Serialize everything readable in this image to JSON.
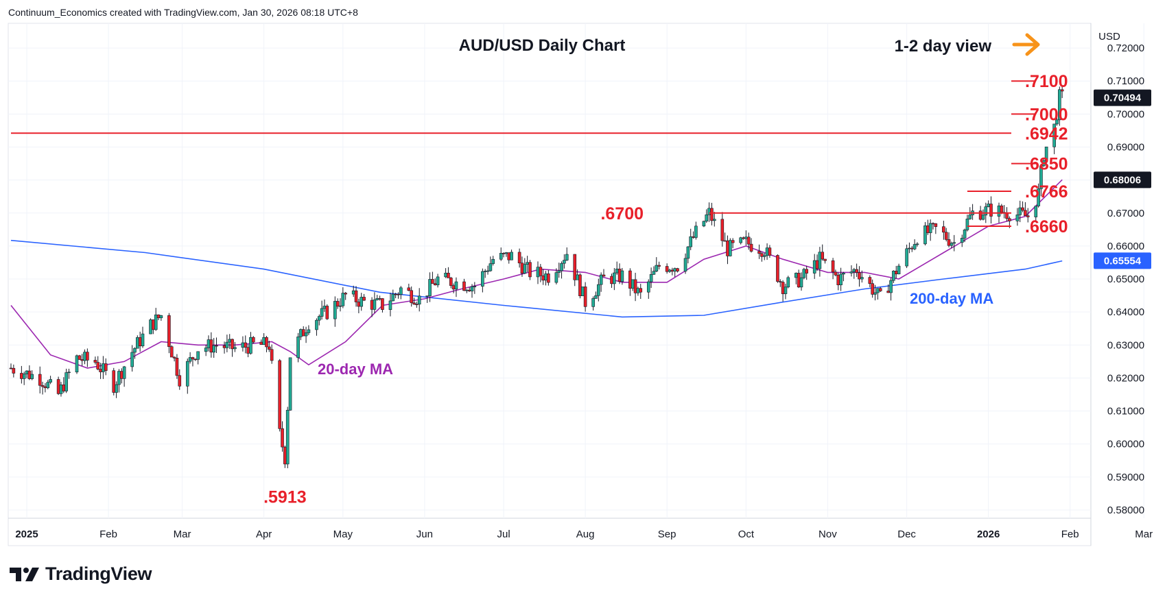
{
  "header": {
    "attribution": "Continuum_Economics created with TradingView.com, Jan 30, 2026 08:18 UTC+8"
  },
  "footer": {
    "logo_text": "TradingView"
  },
  "colors": {
    "up": "#22ab94",
    "down": "#e8202a",
    "ma20": "#9c27b0",
    "ma200": "#2962ff",
    "level": "#e8202a",
    "arrow": "#f7931a",
    "badge_neutral": "#131722",
    "badge_ma200": "#2962ff"
  },
  "chart_data": {
    "type": "candlestick",
    "title": "AUD/USD Daily Chart",
    "subtitle": "1-2 day view",
    "currency": "USD",
    "ylim": [
      0.5775,
      0.7275
    ],
    "y_ticks": [
      "0.72000",
      "0.71000",
      "0.70000",
      "0.69000",
      "0.68000",
      "0.67000",
      "0.66000",
      "0.65000",
      "0.64000",
      "0.63000",
      "0.62000",
      "0.61000",
      "0.60000",
      "0.59000",
      "0.58000"
    ],
    "x_ticks": [
      "2025",
      "Feb",
      "Mar",
      "Apr",
      "May",
      "Jun",
      "Jul",
      "Aug",
      "Sep",
      "Oct",
      "Nov",
      "Dec",
      "2026",
      "Feb",
      "Mar"
    ],
    "price_badges": [
      {
        "label": "0.70494",
        "value": 0.70494,
        "kind": "last"
      },
      {
        "label": "0.68006",
        "value": 0.68006,
        "kind": "ma20"
      },
      {
        "label": "0.65554",
        "value": 0.65554,
        "kind": "ma200"
      }
    ],
    "levels": [
      {
        "label": ".7100",
        "value": 0.71,
        "start": "2026-01-19"
      },
      {
        "label": ".7000",
        "value": 0.7,
        "start": "2026-01-19"
      },
      {
        "label": ".6942",
        "value": 0.6942,
        "start": "2024-12-26"
      },
      {
        "label": ".6850",
        "value": 0.685,
        "start": "2026-01-19"
      },
      {
        "label": ".6766",
        "value": 0.6766,
        "start": "2025-12-24"
      },
      {
        "label": ".6700",
        "value": 0.67,
        "start": "2025-09-17",
        "label_side": "left"
      },
      {
        "label": ".6660",
        "value": 0.666,
        "start": "2025-12-24"
      }
    ],
    "annotations": [
      {
        "text": ".5913",
        "value": 0.5913,
        "date": "2025-04-09"
      },
      {
        "text": "20-day MA",
        "series": "ma20"
      },
      {
        "text": "200-day MA",
        "series": "ma200"
      }
    ],
    "date_start": "2024-12-26",
    "close_path": [
      [
        "2024-12-26",
        0.623
      ],
      [
        "2025-01-06",
        0.62
      ],
      [
        "2025-01-13",
        0.615
      ],
      [
        "2025-01-20",
        0.626
      ],
      [
        "2025-01-27",
        0.625
      ],
      [
        "2025-02-03",
        0.618
      ],
      [
        "2025-02-10",
        0.628
      ],
      [
        "2025-02-17",
        0.636
      ],
      [
        "2025-02-21",
        0.639
      ],
      [
        "2025-02-28",
        0.62
      ],
      [
        "2025-03-07",
        0.629
      ],
      [
        "2025-03-14",
        0.63
      ],
      [
        "2025-03-21",
        0.629
      ],
      [
        "2025-03-28",
        0.63
      ],
      [
        "2025-04-03",
        0.63
      ],
      [
        "2025-04-07",
        0.603
      ],
      [
        "2025-04-09",
        0.596
      ],
      [
        "2025-04-11",
        0.627
      ],
      [
        "2025-04-18",
        0.637
      ],
      [
        "2025-04-25",
        0.64
      ],
      [
        "2025-05-02",
        0.645
      ],
      [
        "2025-05-09",
        0.643
      ],
      [
        "2025-05-16",
        0.642
      ],
      [
        "2025-05-23",
        0.647
      ],
      [
        "2025-05-30",
        0.644
      ],
      [
        "2025-06-06",
        0.65
      ],
      [
        "2025-06-13",
        0.649
      ],
      [
        "2025-06-20",
        0.648
      ],
      [
        "2025-06-27",
        0.656
      ],
      [
        "2025-07-04",
        0.657
      ],
      [
        "2025-07-11",
        0.652
      ],
      [
        "2025-07-18",
        0.651
      ],
      [
        "2025-07-25",
        0.658
      ],
      [
        "2025-08-01",
        0.643
      ],
      [
        "2025-08-08",
        0.65
      ],
      [
        "2025-08-15",
        0.651
      ],
      [
        "2025-08-22",
        0.645
      ],
      [
        "2025-08-29",
        0.654
      ],
      [
        "2025-09-05",
        0.654
      ],
      [
        "2025-09-12",
        0.664
      ],
      [
        "2025-09-17",
        0.67
      ],
      [
        "2025-09-24",
        0.659
      ],
      [
        "2025-10-01",
        0.661
      ],
      [
        "2025-10-08",
        0.659
      ],
      [
        "2025-10-15",
        0.648
      ],
      [
        "2025-10-22",
        0.65
      ],
      [
        "2025-10-29",
        0.656
      ],
      [
        "2025-11-05",
        0.65
      ],
      [
        "2025-11-12",
        0.653
      ],
      [
        "2025-11-21",
        0.644
      ],
      [
        "2025-11-28",
        0.654
      ],
      [
        "2025-12-05",
        0.663
      ],
      [
        "2025-12-12",
        0.665
      ],
      [
        "2025-12-19",
        0.661
      ],
      [
        "2025-12-26",
        0.67
      ],
      [
        "2026-01-02",
        0.671
      ],
      [
        "2026-01-09",
        0.67
      ],
      [
        "2026-01-16",
        0.669
      ],
      [
        "2026-01-20",
        0.676
      ],
      [
        "2026-01-22",
        0.688
      ],
      [
        "2026-01-26",
        0.696
      ],
      [
        "2026-01-28",
        0.705
      ],
      [
        "2026-01-29",
        0.7049
      ]
    ],
    "ma20": [
      [
        "2024-12-26",
        0.642
      ],
      [
        "2025-01-10",
        0.627
      ],
      [
        "2025-01-24",
        0.623
      ],
      [
        "2025-02-07",
        0.625
      ],
      [
        "2025-02-21",
        0.631
      ],
      [
        "2025-03-07",
        0.63
      ],
      [
        "2025-03-21",
        0.63
      ],
      [
        "2025-04-04",
        0.631
      ],
      [
        "2025-04-11",
        0.628
      ],
      [
        "2025-04-18",
        0.624
      ],
      [
        "2025-05-02",
        0.631
      ],
      [
        "2025-05-16",
        0.642
      ],
      [
        "2025-06-01",
        0.644
      ],
      [
        "2025-06-15",
        0.647
      ],
      [
        "2025-07-01",
        0.65
      ],
      [
        "2025-07-15",
        0.653
      ],
      [
        "2025-08-01",
        0.652
      ],
      [
        "2025-08-15",
        0.649
      ],
      [
        "2025-09-01",
        0.649
      ],
      [
        "2025-09-15",
        0.656
      ],
      [
        "2025-10-01",
        0.66
      ],
      [
        "2025-10-15",
        0.656
      ],
      [
        "2025-11-01",
        0.652
      ],
      [
        "2025-11-15",
        0.652
      ],
      [
        "2025-11-28",
        0.65
      ],
      [
        "2025-12-15",
        0.658
      ],
      [
        "2026-01-01",
        0.666
      ],
      [
        "2026-01-15",
        0.669
      ],
      [
        "2026-01-29",
        0.6801
      ]
    ],
    "ma200": [
      [
        "2024-12-26",
        0.6617
      ],
      [
        "2025-02-15",
        0.658
      ],
      [
        "2025-04-01",
        0.653
      ],
      [
        "2025-05-15",
        0.646
      ],
      [
        "2025-07-01",
        0.642
      ],
      [
        "2025-08-15",
        0.6385
      ],
      [
        "2025-09-15",
        0.639
      ],
      [
        "2025-10-15",
        0.643
      ],
      [
        "2025-11-15",
        0.647
      ],
      [
        "2025-12-15",
        0.65
      ],
      [
        "2026-01-15",
        0.653
      ],
      [
        "2026-01-29",
        0.6555
      ]
    ]
  }
}
